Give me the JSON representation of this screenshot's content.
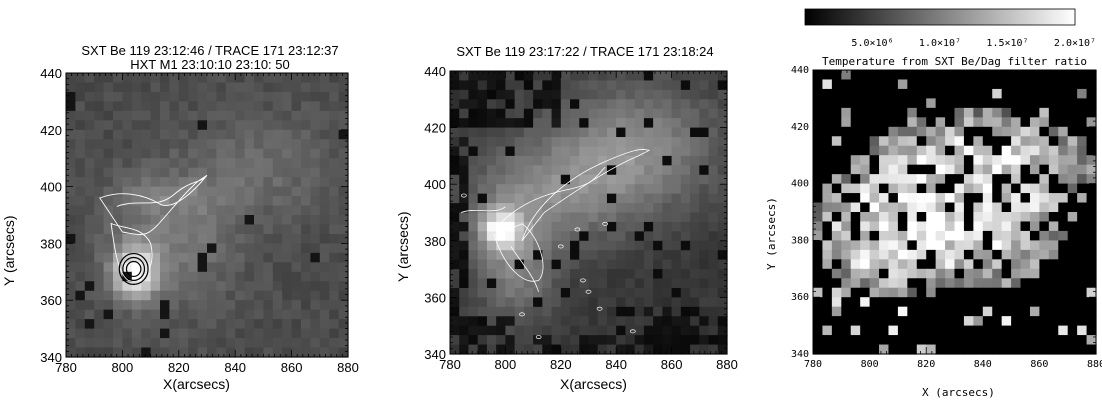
{
  "chart_data": [
    {
      "type": "heatmap",
      "title": "SXT Be 119  23:12:46 / TRACE 171 23:12:37",
      "subtitle": "HXT M1 23:10:10  23:10: 50",
      "xlabel": "X(arcsecs)",
      "ylabel": "Y (arcsecs)",
      "xlim": [
        780,
        880
      ],
      "ylim": [
        340,
        440
      ],
      "x_ticks": [
        780,
        800,
        820,
        840,
        860,
        880
      ],
      "y_ticks": [
        340,
        360,
        380,
        400,
        420,
        440
      ],
      "bright_source": {
        "x": 804,
        "y": 372
      },
      "contours": {
        "white": "TRACE 171 loop",
        "black": "HXT M1"
      },
      "grid": false
    },
    {
      "type": "heatmap",
      "title": "SXT Be 119  23:17:22 / TRACE 171 23:18:24",
      "xlabel": "X(arcsecs)",
      "ylabel": "Y (arcsecs)",
      "xlim": [
        780,
        880
      ],
      "ylim": [
        340,
        440
      ],
      "x_ticks": [
        780,
        800,
        820,
        840,
        860,
        880
      ],
      "y_ticks": [
        340,
        360,
        380,
        400,
        420,
        440
      ],
      "bright_source": {
        "x": 802,
        "y": 380
      },
      "contours": {
        "white": "TRACE 171 loop"
      },
      "grid": false
    },
    {
      "type": "heatmap",
      "title": "Temperature from SXT Be/Dag filter ratio",
      "xlabel": "X (arcsecs)",
      "ylabel": "Y (arcsecs)",
      "xlim": [
        780,
        880
      ],
      "ylim": [
        340,
        440
      ],
      "x_ticks": [
        780,
        800,
        820,
        840,
        860,
        880
      ],
      "y_ticks": [
        340,
        360,
        380,
        400,
        420,
        440
      ],
      "colorbar": {
        "range": [
          0,
          20000000
        ],
        "tick_values": [
          5000000,
          10000000,
          15000000,
          20000000
        ],
        "tick_labels": [
          "5.0×10⁶",
          "1.0×10⁷",
          "1.5×10⁷",
          "2.0×10⁷"
        ]
      },
      "grid": false
    }
  ]
}
